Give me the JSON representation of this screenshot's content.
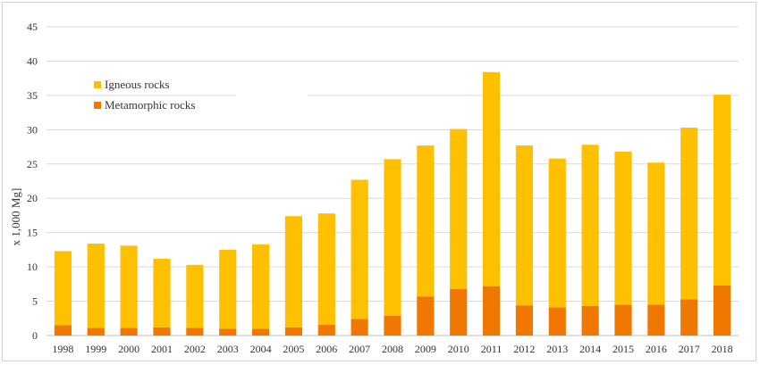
{
  "chart_data": {
    "type": "bar",
    "stacked": true,
    "categories": [
      "1998",
      "1999",
      "2000",
      "2001",
      "2002",
      "2003",
      "2004",
      "2005",
      "2006",
      "2007",
      "2008",
      "2009",
      "2010",
      "2011",
      "2012",
      "2013",
      "2014",
      "2015",
      "2016",
      "2017",
      "2018"
    ],
    "series": [
      {
        "name": "Metamorphic rocks",
        "color": "#f07800",
        "values": [
          1.5,
          1.1,
          1.1,
          1.2,
          1.1,
          1.0,
          1.0,
          1.2,
          1.6,
          2.4,
          2.9,
          5.7,
          6.8,
          7.2,
          4.4,
          4.1,
          4.3,
          4.5,
          4.5,
          5.3,
          7.3
        ]
      },
      {
        "name": "Igneous rocks",
        "color": "#ffc000",
        "values": [
          10.8,
          12.3,
          12.0,
          10.0,
          9.2,
          11.5,
          12.3,
          16.2,
          16.2,
          20.3,
          22.8,
          22.0,
          23.3,
          31.2,
          23.3,
          21.7,
          23.5,
          22.3,
          20.7,
          25.0,
          27.8
        ]
      }
    ],
    "ylabel": "x 1,000 Mg]",
    "xlabel": "",
    "ylim": [
      0,
      45
    ],
    "yticks": [
      0,
      5,
      10,
      15,
      20,
      25,
      30,
      35,
      40,
      45
    ],
    "grid": true,
    "legend_position": "top-left"
  }
}
